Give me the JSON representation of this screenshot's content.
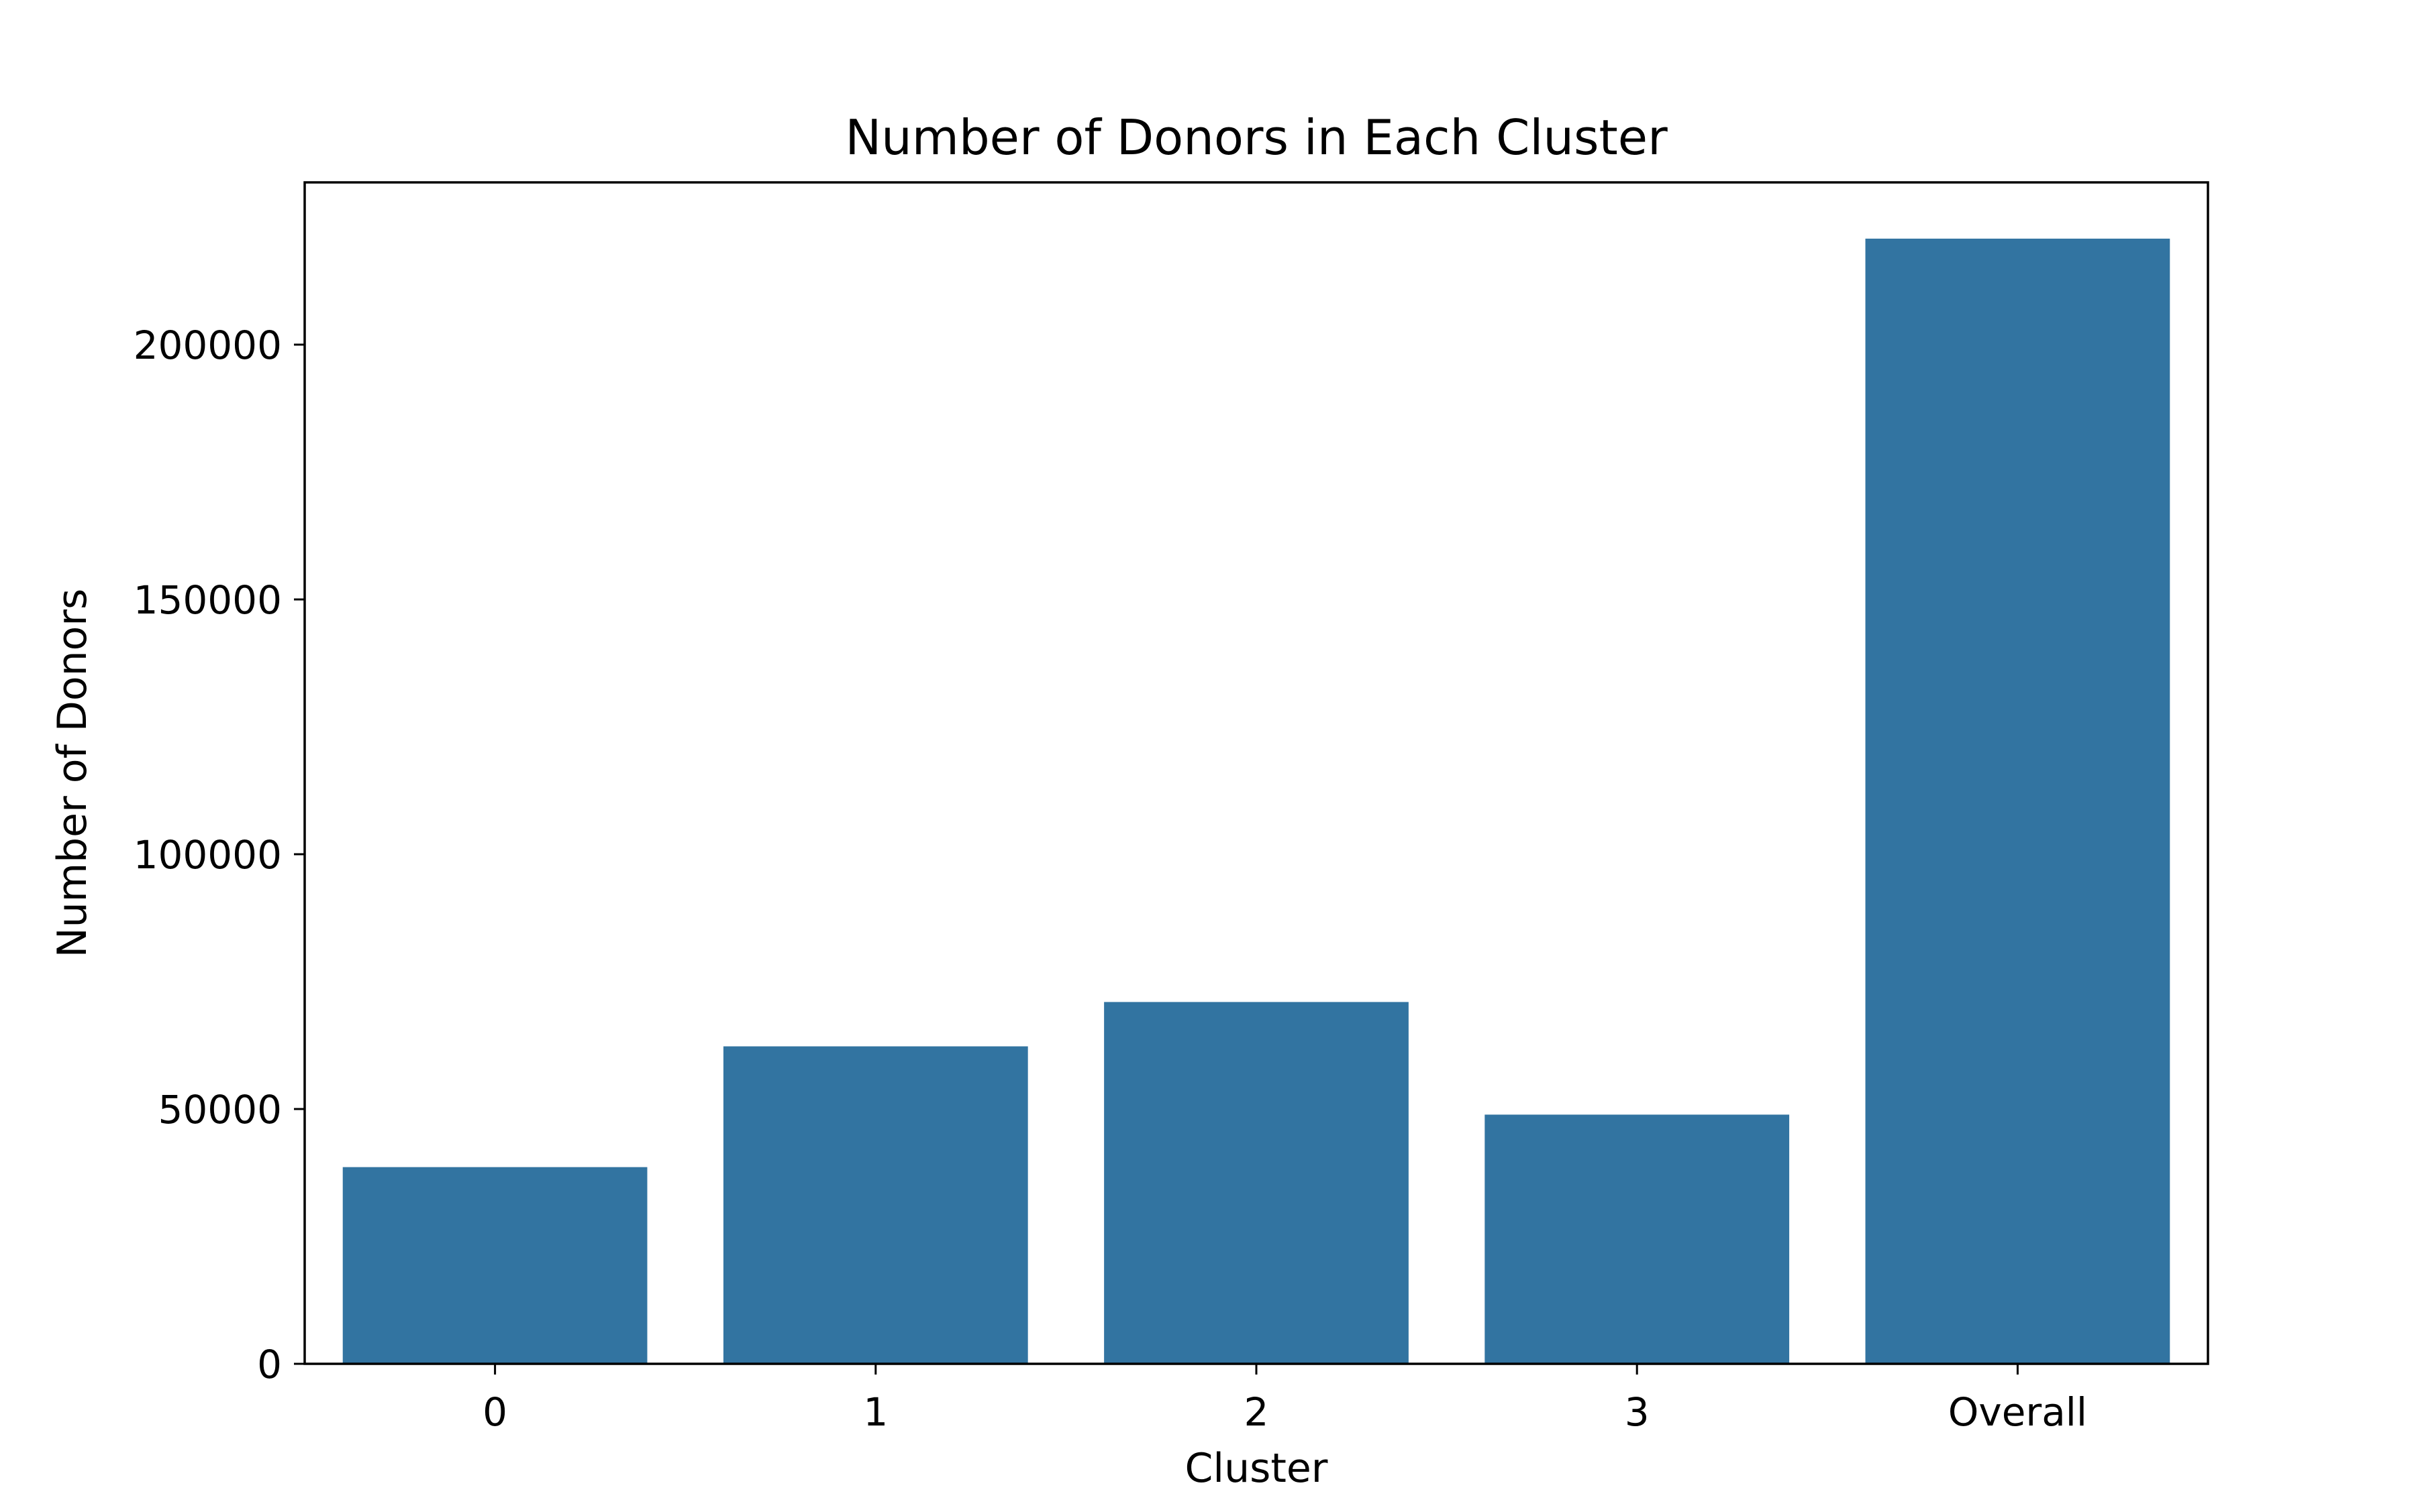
{
  "chart_data": {
    "type": "bar",
    "title": "Number of Donors in Each Cluster",
    "xlabel": "Cluster",
    "ylabel": "Number of Donors",
    "categories": [
      "0",
      "1",
      "2",
      "3",
      "Overall"
    ],
    "values": [
      38600,
      62300,
      71000,
      48900,
      220800
    ],
    "ylim": [
      0,
      231840
    ],
    "yticks": [
      0,
      50000,
      100000,
      150000,
      200000
    ],
    "ytick_labels": [
      "0",
      "50000",
      "100000",
      "150000",
      "200000"
    ],
    "grid": false,
    "bar_color": "#3274a1"
  }
}
